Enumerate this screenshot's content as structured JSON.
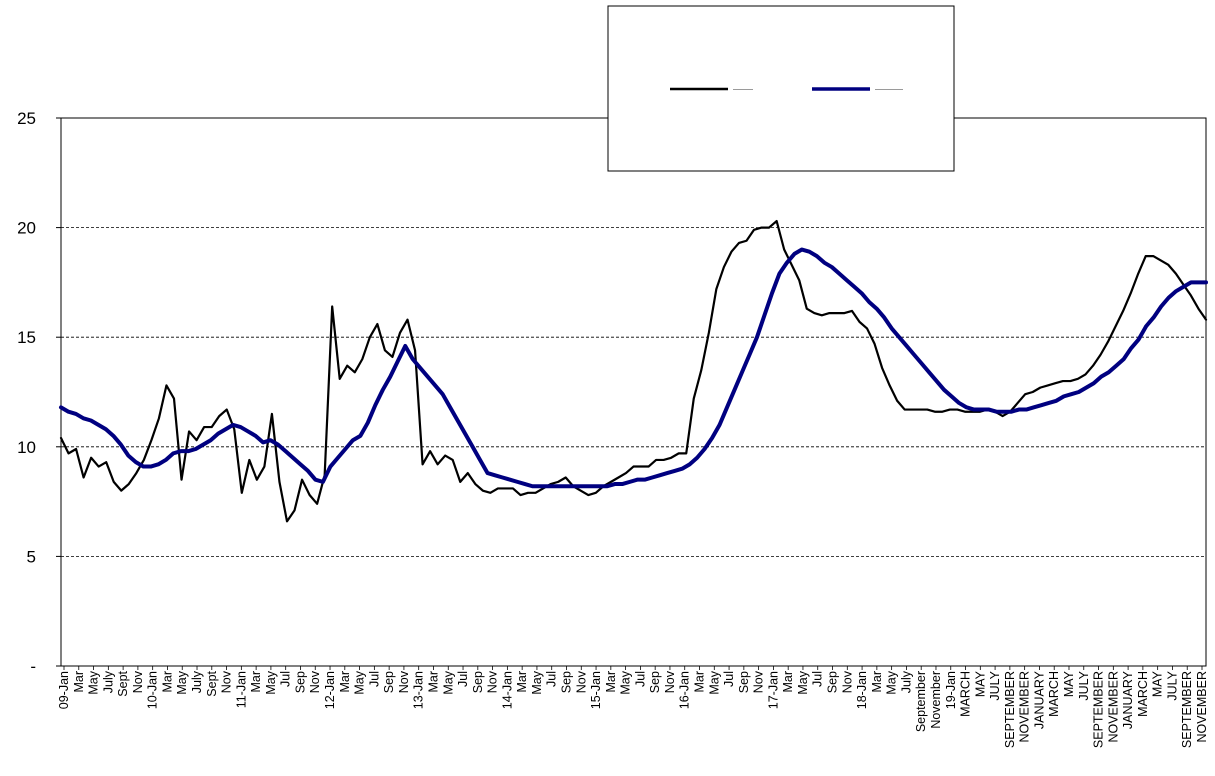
{
  "chart_data": {
    "type": "line",
    "ylim": [
      0,
      25
    ],
    "y_ticks": [
      {
        "value": 0,
        "label": "-"
      },
      {
        "value": 5,
        "label": "5"
      },
      {
        "value": 10,
        "label": "10"
      },
      {
        "value": 15,
        "label": "15"
      },
      {
        "value": 20,
        "label": "20"
      },
      {
        "value": 25,
        "label": "25"
      }
    ],
    "grid": "horizontal dashed",
    "legend_position": "top-center",
    "x_tick_labels": [
      "09-Jan",
      "Mar",
      "May",
      "July",
      "Sept",
      "Nov",
      "10-Jan",
      "Mar",
      "May",
      "July",
      "Sept",
      "Nov",
      "11-Jan",
      "Mar",
      "May",
      "Jul",
      "Sep",
      "Nov",
      "12-Jan",
      "Mar",
      "May",
      "Jul",
      "Sep",
      "Nov",
      "13-Jan",
      "Mar",
      "May",
      "Jul",
      "Sep",
      "Nov",
      "14-Jan",
      "Mar",
      "May",
      "Jul",
      "Sep",
      "Nov",
      "15-Jan",
      "Mar",
      "May",
      "Jul",
      "Sep",
      "Nov",
      "16-Jan",
      "Mar",
      "May",
      "Jul",
      "Sep",
      "Nov",
      "17-Jan",
      "Mar",
      "May",
      "Jul",
      "Sep",
      "Nov",
      "18-Jan",
      "Mar",
      "May",
      "July",
      "September",
      "November",
      "19-Jan",
      "MARCH",
      "MAY",
      "JULY",
      "SEPTEMBER",
      "NOVEMBER",
      "JANUARY",
      "MARCH",
      "MAY",
      "JULY",
      "SEPTEMBER",
      "NOVEMBER",
      "JANUARY",
      "MARCH",
      "MAY",
      "JULY",
      "SEPTEMBER",
      "NOVEMBER"
    ],
    "series": [
      {
        "color": "#000000",
        "values": [
          10.4,
          9.7,
          9.9,
          8.6,
          9.5,
          9.1,
          9.3,
          8.4,
          8.0,
          8.3,
          8.8,
          9.4,
          10.3,
          11.3,
          12.8,
          12.2,
          8.5,
          10.7,
          10.3,
          10.9,
          10.9,
          11.4,
          11.7,
          10.8,
          7.9,
          9.4,
          8.5,
          9.1,
          11.5,
          8.4,
          6.6,
          7.1,
          8.5,
          7.8,
          7.4,
          8.7,
          16.4,
          13.1,
          13.7,
          13.4,
          14.0,
          15.0,
          15.6,
          14.4,
          14.1,
          15.2,
          15.8,
          14.4,
          9.2,
          9.8,
          9.2,
          9.6,
          9.4,
          8.4,
          8.8,
          8.3,
          8.0,
          7.9,
          8.1,
          8.1,
          8.1,
          7.8,
          7.9,
          7.9,
          8.1,
          8.3,
          8.4,
          8.6,
          8.2,
          8.0,
          7.8,
          7.9,
          8.2,
          8.4,
          8.6,
          8.8,
          9.1,
          9.1,
          9.1,
          9.4,
          9.4,
          9.5,
          9.7,
          9.7,
          12.2,
          13.5,
          15.2,
          17.2,
          18.2,
          18.9,
          19.3,
          19.4,
          19.9,
          20.0,
          20.0,
          20.3,
          19.0,
          18.3,
          17.6,
          16.3,
          16.1,
          16.0,
          16.1,
          16.1,
          16.1,
          16.2,
          15.7,
          15.4,
          14.7,
          13.6,
          12.8,
          12.1,
          11.7,
          11.7,
          11.7,
          11.7,
          11.6,
          11.6,
          11.7,
          11.7,
          11.6,
          11.6,
          11.6,
          11.7,
          11.6,
          11.4,
          11.6,
          12.0,
          12.4,
          12.5,
          12.7,
          12.8,
          12.9,
          13.0,
          13.0,
          13.1,
          13.3,
          13.7,
          14.2,
          14.8,
          15.5,
          16.2,
          17.0,
          17.9,
          18.7,
          18.7,
          18.5,
          18.3,
          17.9,
          17.4,
          16.9,
          16.3,
          15.8
        ]
      },
      {
        "color": "#000080",
        "values": [
          11.8,
          11.6,
          11.5,
          11.3,
          11.2,
          11.0,
          10.8,
          10.5,
          10.1,
          9.6,
          9.3,
          9.1,
          9.1,
          9.2,
          9.4,
          9.7,
          9.8,
          9.8,
          9.9,
          10.1,
          10.3,
          10.6,
          10.8,
          11.0,
          10.9,
          10.7,
          10.5,
          10.2,
          10.3,
          10.1,
          9.8,
          9.5,
          9.2,
          8.9,
          8.5,
          8.4,
          9.1,
          9.5,
          9.9,
          10.3,
          10.5,
          11.1,
          11.9,
          12.6,
          13.2,
          13.9,
          14.6,
          14.0,
          13.6,
          13.2,
          12.8,
          12.4,
          11.8,
          11.2,
          10.6,
          10.0,
          9.4,
          8.8,
          8.7,
          8.6,
          8.5,
          8.4,
          8.3,
          8.2,
          8.2,
          8.2,
          8.2,
          8.2,
          8.2,
          8.2,
          8.2,
          8.2,
          8.2,
          8.2,
          8.3,
          8.3,
          8.4,
          8.5,
          8.5,
          8.6,
          8.7,
          8.8,
          8.9,
          9.0,
          9.2,
          9.5,
          9.9,
          10.4,
          11.0,
          11.8,
          12.6,
          13.4,
          14.2,
          15.0,
          16.0,
          17.0,
          17.9,
          18.4,
          18.8,
          19.0,
          18.9,
          18.7,
          18.4,
          18.2,
          17.9,
          17.6,
          17.3,
          17.0,
          16.6,
          16.3,
          15.9,
          15.4,
          15.0,
          14.6,
          14.2,
          13.8,
          13.4,
          13.0,
          12.6,
          12.3,
          12.0,
          11.8,
          11.7,
          11.7,
          11.7,
          11.6,
          11.6,
          11.6,
          11.7,
          11.7,
          11.8,
          11.9,
          12.0,
          12.1,
          12.3,
          12.4,
          12.5,
          12.7,
          12.9,
          13.2,
          13.4,
          13.7,
          14.0,
          14.5,
          14.9,
          15.5,
          15.9,
          16.4,
          16.8,
          17.1,
          17.3,
          17.5,
          17.5,
          17.5
        ]
      }
    ]
  }
}
